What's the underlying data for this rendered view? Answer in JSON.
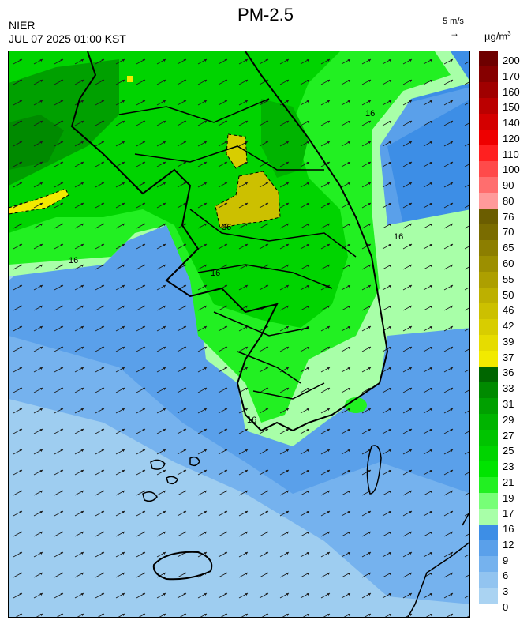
{
  "header": {
    "title": "PM-2.5",
    "agency": "NIER",
    "datetime": "JUL 07 2025 01:00 KST",
    "wind_reference": "5 m/s",
    "wind_arrow_glyph": "→",
    "unit": "µg/m",
    "unit_superscript": "3"
  },
  "map": {
    "contour_labels": [
      "16",
      "16",
      "16",
      "16",
      "16",
      "36"
    ]
  },
  "legend": {
    "labels": [
      "200",
      "170",
      "160",
      "150",
      "140",
      "120",
      "110",
      "100",
      "90",
      "80",
      "76",
      "70",
      "65",
      "60",
      "55",
      "50",
      "46",
      "42",
      "39",
      "37",
      "36",
      "33",
      "31",
      "29",
      "27",
      "25",
      "23",
      "21",
      "19",
      "17",
      "16",
      "12",
      "9",
      "6",
      "3",
      "0"
    ],
    "colors": [
      "#6e0000",
      "#860000",
      "#a00000",
      "#bb0000",
      "#d40000",
      "#ee0000",
      "#ff2020",
      "#ff4a4a",
      "#ff6e6e",
      "#ff9a9a",
      "#6b5d00",
      "#7a6c00",
      "#8c7e00",
      "#9c8f00",
      "#ad9f00",
      "#bdb000",
      "#ccc000",
      "#d8cd00",
      "#e6dc00",
      "#f2ea00",
      "#006600",
      "#008a00",
      "#00a000",
      "#00b400",
      "#00c400",
      "#00d400",
      "#00e400",
      "#22f022",
      "#77ff77",
      "#a8ffa8",
      "#3d8ee6",
      "#5aa0ea",
      "#75b2ee",
      "#92c4f0",
      "#aad3f2"
    ]
  }
}
